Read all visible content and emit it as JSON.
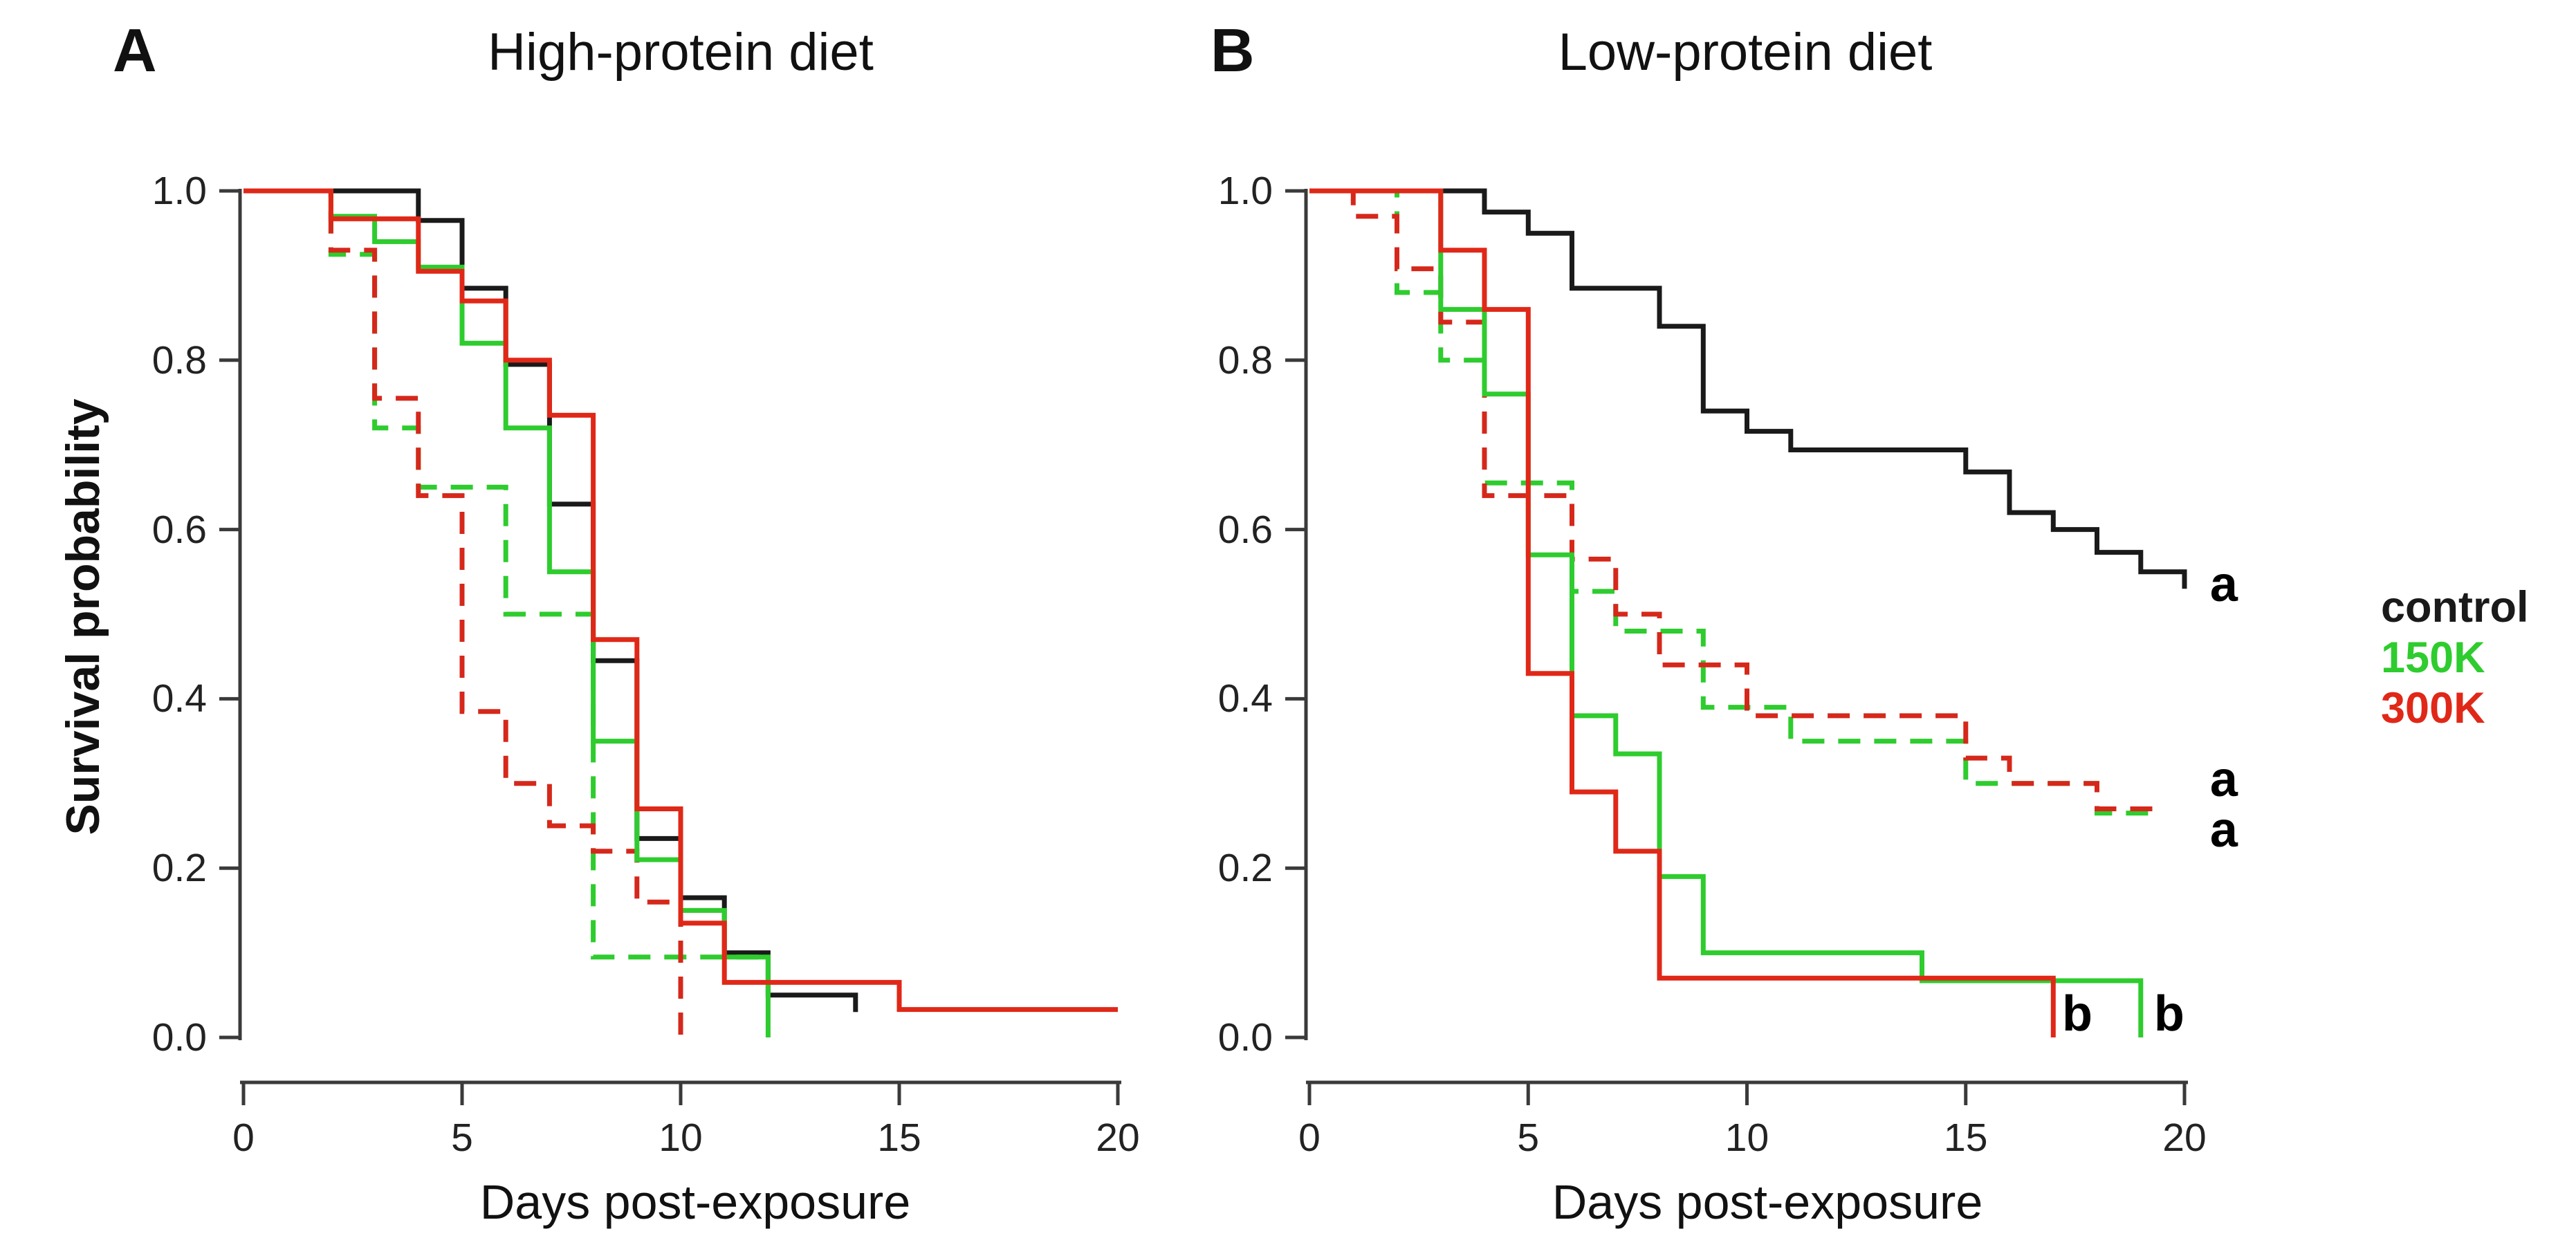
{
  "figure": {
    "background": "#ffffff",
    "axis_color": "#3a3a3a",
    "text_color": "#111111"
  },
  "legend": {
    "items": [
      {
        "label": "control",
        "color": "#1a1a1a"
      },
      {
        "label": "150K",
        "color": "#2ecc2e"
      },
      {
        "label": "300K",
        "color": "#e02818"
      }
    ]
  },
  "chart_data": [
    {
      "type": "line",
      "subtype": "kaplan-meier-step",
      "panel_label": "A",
      "title": "High-protein diet",
      "xlabel": "Days post-exposure",
      "ylabel": "Survival probability",
      "xlim": [
        0,
        20
      ],
      "ylim": [
        0.0,
        1.0
      ],
      "xticks": [
        0,
        5,
        10,
        15,
        20
      ],
      "yticks": [
        "0.0",
        "0.2",
        "0.4",
        "0.6",
        "0.8",
        "1.0"
      ],
      "grid": "off",
      "series": [
        {
          "name": "control",
          "color": "#1a1a1a",
          "style": "solid",
          "points": [
            [
              0,
              1.0
            ],
            [
              4,
              0.965
            ],
            [
              5,
              0.885
            ],
            [
              6,
              0.795
            ],
            [
              7,
              0.63
            ],
            [
              8,
              0.445
            ],
            [
              9,
              0.235
            ],
            [
              10,
              0.165
            ],
            [
              11,
              0.1
            ],
            [
              12,
              0.05
            ],
            [
              14,
              0.03
            ]
          ]
        },
        {
          "name": "150K-dashed",
          "color": "#2ecc2e",
          "style": "dashed",
          "points": [
            [
              0,
              1.0
            ],
            [
              2,
              0.925
            ],
            [
              3,
              0.72
            ],
            [
              4,
              0.65
            ],
            [
              6,
              0.5
            ],
            [
              8,
              0.095
            ],
            [
              12,
              0.095
            ]
          ]
        },
        {
          "name": "300K-dashed",
          "color": "#d5281b",
          "style": "dashed",
          "points": [
            [
              0,
              1.0
            ],
            [
              2,
              0.93
            ],
            [
              3,
              0.755
            ],
            [
              4,
              0.64
            ],
            [
              5,
              0.385
            ],
            [
              6,
              0.3
            ],
            [
              7,
              0.25
            ],
            [
              8,
              0.22
            ],
            [
              9,
              0.16
            ],
            [
              10,
              0.0
            ]
          ]
        },
        {
          "name": "150K",
          "color": "#2ecc2e",
          "style": "solid",
          "points": [
            [
              0,
              1.0
            ],
            [
              2,
              0.97
            ],
            [
              3,
              0.94
            ],
            [
              4,
              0.91
            ],
            [
              5,
              0.82
            ],
            [
              6,
              0.72
            ],
            [
              7,
              0.55
            ],
            [
              8,
              0.35
            ],
            [
              9,
              0.21
            ],
            [
              10,
              0.15
            ],
            [
              11,
              0.095
            ],
            [
              12,
              0.0
            ]
          ]
        },
        {
          "name": "300K",
          "color": "#e02818",
          "style": "solid",
          "points": [
            [
              0,
              1.0
            ],
            [
              2,
              0.967
            ],
            [
              4,
              0.905
            ],
            [
              5,
              0.87
            ],
            [
              6,
              0.8
            ],
            [
              7,
              0.735
            ],
            [
              8,
              0.47
            ],
            [
              9,
              0.27
            ],
            [
              10,
              0.135
            ],
            [
              11,
              0.065
            ],
            [
              15,
              0.033
            ],
            [
              20,
              0.033
            ]
          ]
        }
      ],
      "annotations": []
    },
    {
      "type": "line",
      "subtype": "kaplan-meier-step",
      "panel_label": "B",
      "title": "Low-protein diet",
      "xlabel": "Days post-exposure",
      "ylabel": "",
      "xlim": [
        0,
        20
      ],
      "ylim": [
        0.0,
        1.0
      ],
      "xticks": [
        0,
        5,
        10,
        15,
        20
      ],
      "yticks": [
        "0.0",
        "0.2",
        "0.4",
        "0.6",
        "0.8",
        "1.0"
      ],
      "grid": "off",
      "series": [
        {
          "name": "control",
          "color": "#1a1a1a",
          "style": "solid",
          "points": [
            [
              0,
              1.0
            ],
            [
              4,
              0.975
            ],
            [
              5,
              0.95
            ],
            [
              6,
              0.885
            ],
            [
              8,
              0.84
            ],
            [
              9,
              0.74
            ],
            [
              10,
              0.716
            ],
            [
              11,
              0.694
            ],
            [
              15,
              0.668
            ],
            [
              16,
              0.62
            ],
            [
              17,
              0.6
            ],
            [
              18,
              0.573
            ],
            [
              19,
              0.55
            ],
            [
              20,
              0.53
            ]
          ]
        },
        {
          "name": "150K-dashed",
          "color": "#2ecc2e",
          "style": "dashed",
          "points": [
            [
              0,
              1.0
            ],
            [
              2,
              0.88
            ],
            [
              3,
              0.8
            ],
            [
              4,
              0.655
            ],
            [
              6,
              0.527
            ],
            [
              7,
              0.48
            ],
            [
              9,
              0.39
            ],
            [
              11,
              0.35
            ],
            [
              15,
              0.3
            ],
            [
              18,
              0.265
            ],
            [
              19.4,
              0.265
            ]
          ]
        },
        {
          "name": "300K-dashed",
          "color": "#d5281b",
          "style": "dashed",
          "points": [
            [
              0,
              1.0
            ],
            [
              1,
              0.97
            ],
            [
              2,
              0.908
            ],
            [
              3,
              0.845
            ],
            [
              4,
              0.64
            ],
            [
              6,
              0.565
            ],
            [
              7,
              0.5
            ],
            [
              8,
              0.44
            ],
            [
              10,
              0.38
            ],
            [
              15,
              0.33
            ],
            [
              16,
              0.3
            ],
            [
              18,
              0.27
            ],
            [
              19.3,
              0.27
            ]
          ]
        },
        {
          "name": "150K",
          "color": "#2ecc2e",
          "style": "solid",
          "points": [
            [
              0,
              1.0
            ],
            [
              3,
              0.86
            ],
            [
              4,
              0.76
            ],
            [
              5,
              0.57
            ],
            [
              6,
              0.38
            ],
            [
              7,
              0.335
            ],
            [
              8,
              0.19
            ],
            [
              9,
              0.1
            ],
            [
              14,
              0.067
            ],
            [
              19,
              0.0
            ]
          ]
        },
        {
          "name": "300K",
          "color": "#e02818",
          "style": "solid",
          "points": [
            [
              0,
              1.0
            ],
            [
              3,
              0.93
            ],
            [
              4,
              0.86
            ],
            [
              5,
              0.43
            ],
            [
              6,
              0.29
            ],
            [
              7,
              0.22
            ],
            [
              8,
              0.07
            ],
            [
              17,
              0.0
            ]
          ]
        }
      ],
      "annotations": [
        {
          "text": "a",
          "x": 20.9,
          "y": 0.535
        },
        {
          "text": "a",
          "x": 20.9,
          "y": 0.305
        },
        {
          "text": "a",
          "x": 20.9,
          "y": 0.245
        },
        {
          "text": "b",
          "x": 17.55,
          "y": 0.028
        },
        {
          "text": "b",
          "x": 19.65,
          "y": 0.028
        }
      ]
    }
  ]
}
